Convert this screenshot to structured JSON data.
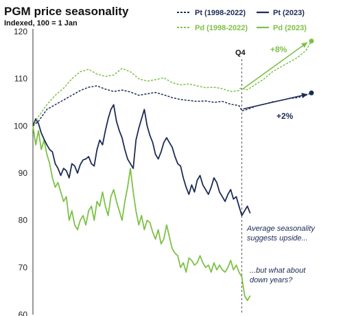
{
  "chart_data": {
    "type": "line",
    "title": "PGM price seasonality",
    "subtitle": "Indexed, 100 = 1 Jan",
    "ylim": [
      60,
      120
    ],
    "yticks": [
      60,
      70,
      80,
      90,
      100,
      110,
      120
    ],
    "xlim": [
      0,
      1
    ],
    "grid": false,
    "legend_position": "top-right",
    "colors": {
      "pt": "#1b2a55",
      "pd": "#7cc144",
      "guide": "#555555",
      "arrow_pt": "#1b2a55",
      "arrow_pd": "#7cc144"
    },
    "series": [
      {
        "name": "Pt (1998-2022)",
        "style": "dashed",
        "color": "#1b2a55",
        "x": [
          0.0,
          0.02,
          0.05,
          0.08,
          0.11,
          0.14,
          0.17,
          0.2,
          0.23,
          0.26,
          0.29,
          0.32,
          0.35,
          0.38,
          0.41,
          0.44,
          0.47,
          0.5,
          0.53,
          0.56,
          0.59,
          0.62,
          0.65,
          0.68,
          0.71,
          0.74,
          0.745,
          0.75,
          0.77,
          0.8,
          0.83,
          0.86,
          0.89,
          0.92,
          0.95,
          0.98,
          1.0
        ],
        "values": [
          100,
          101,
          103.5,
          104.5,
          105.5,
          106.5,
          107.5,
          108.2,
          108.5,
          107.8,
          107.3,
          107.6,
          107.2,
          106.5,
          106.8,
          107.1,
          106.6,
          106.0,
          105.6,
          105.4,
          105.2,
          105.3,
          105.0,
          105.2,
          104.6,
          104.3,
          103.8,
          103.2,
          103.5,
          104.2,
          104.6,
          105.1,
          105.4,
          105.8,
          106.0,
          106.5,
          107.0
        ]
      },
      {
        "name": "Pt (2023)",
        "style": "solid",
        "color": "#1b2a55",
        "x": [
          0.0,
          0.01,
          0.02,
          0.03,
          0.04,
          0.05,
          0.06,
          0.07,
          0.08,
          0.09,
          0.1,
          0.11,
          0.12,
          0.13,
          0.14,
          0.15,
          0.16,
          0.17,
          0.18,
          0.19,
          0.2,
          0.21,
          0.22,
          0.23,
          0.24,
          0.25,
          0.26,
          0.27,
          0.28,
          0.29,
          0.3,
          0.31,
          0.32,
          0.33,
          0.34,
          0.35,
          0.36,
          0.37,
          0.38,
          0.39,
          0.4,
          0.41,
          0.42,
          0.43,
          0.44,
          0.45,
          0.46,
          0.47,
          0.48,
          0.49,
          0.5,
          0.51,
          0.52,
          0.53,
          0.54,
          0.55,
          0.56,
          0.57,
          0.58,
          0.59,
          0.6,
          0.61,
          0.62,
          0.63,
          0.64,
          0.65,
          0.66,
          0.67,
          0.68,
          0.69,
          0.7,
          0.71,
          0.72,
          0.73,
          0.74,
          0.75,
          0.76,
          0.77,
          0.78
        ],
        "values": [
          100,
          101.5,
          100.5,
          98.5,
          97.2,
          96.0,
          95.0,
          94.5,
          92.0,
          91.0,
          89.5,
          91.0,
          90.5,
          89.0,
          92.0,
          91.5,
          90.0,
          91.8,
          92.8,
          93.0,
          93.5,
          92.0,
          91.5,
          95.0,
          97.0,
          96.0,
          99.0,
          101.5,
          103.5,
          104.5,
          101.0,
          99.0,
          97.5,
          95.0,
          93.0,
          92.0,
          91.0,
          97.0,
          99.5,
          101.5,
          103.5,
          100.0,
          98.0,
          96.5,
          94.0,
          93.0,
          94.5,
          96.5,
          97.5,
          96.5,
          95.5,
          93.5,
          92.0,
          91.5,
          89.0,
          87.0,
          85.5,
          87.5,
          86.0,
          88.5,
          89.5,
          87.5,
          86.5,
          85.5,
          87.0,
          89.0,
          88.0,
          86.0,
          85.0,
          84.0,
          85.5,
          86.5,
          84.5,
          85.0,
          83.0,
          81.0,
          82.0,
          83.0,
          81.5
        ]
      },
      {
        "name": "Pd (1998-2022)",
        "style": "dashed",
        "color": "#7cc144",
        "x": [
          0.0,
          0.02,
          0.05,
          0.08,
          0.11,
          0.14,
          0.17,
          0.2,
          0.23,
          0.26,
          0.29,
          0.32,
          0.35,
          0.38,
          0.41,
          0.44,
          0.47,
          0.5,
          0.53,
          0.56,
          0.59,
          0.62,
          0.65,
          0.68,
          0.71,
          0.74,
          0.745,
          0.75,
          0.77,
          0.8,
          0.83,
          0.86,
          0.89,
          0.92,
          0.95,
          0.98,
          1.0
        ],
        "values": [
          100,
          102,
          104.5,
          106.5,
          108,
          110,
          111.5,
          112,
          111,
          110.5,
          110.8,
          112.2,
          111.5,
          110.0,
          109.5,
          109.8,
          110.2,
          109.2,
          108.7,
          108.9,
          108.5,
          108.1,
          108.2,
          107.9,
          107.3,
          107.5,
          108.0,
          107.9,
          107.7,
          108.8,
          110.0,
          111.5,
          112.5,
          113.5,
          114.5,
          116.0,
          118.0
        ]
      },
      {
        "name": "Pd (2023)",
        "style": "solid",
        "color": "#7cc144",
        "x": [
          0.0,
          0.01,
          0.02,
          0.03,
          0.04,
          0.05,
          0.06,
          0.07,
          0.08,
          0.09,
          0.1,
          0.11,
          0.12,
          0.13,
          0.14,
          0.15,
          0.16,
          0.17,
          0.18,
          0.19,
          0.2,
          0.21,
          0.22,
          0.23,
          0.24,
          0.25,
          0.26,
          0.27,
          0.28,
          0.29,
          0.3,
          0.31,
          0.32,
          0.33,
          0.34,
          0.35,
          0.36,
          0.37,
          0.38,
          0.39,
          0.4,
          0.41,
          0.42,
          0.43,
          0.44,
          0.45,
          0.46,
          0.47,
          0.48,
          0.49,
          0.5,
          0.51,
          0.52,
          0.53,
          0.54,
          0.55,
          0.56,
          0.57,
          0.58,
          0.59,
          0.6,
          0.61,
          0.62,
          0.63,
          0.64,
          0.65,
          0.66,
          0.67,
          0.68,
          0.69,
          0.7,
          0.71,
          0.72,
          0.73,
          0.74,
          0.75,
          0.76,
          0.77,
          0.78
        ],
        "values": [
          100,
          96.0,
          99.0,
          95.0,
          97.0,
          94.0,
          92.0,
          89.0,
          87.0,
          88.0,
          86.0,
          84.0,
          85.0,
          80.0,
          82.0,
          79.0,
          78.0,
          80.0,
          81.0,
          79.0,
          82.0,
          83.0,
          80.0,
          84.0,
          83.0,
          86.0,
          83.0,
          81.0,
          85.0,
          86.5,
          84.0,
          82.0,
          80.0,
          84.0,
          87.0,
          91.0,
          86.0,
          82.0,
          79.0,
          81.0,
          78.0,
          80.0,
          79.5,
          77.5,
          76.0,
          78.0,
          75.0,
          76.0,
          79.0,
          76.5,
          74.0,
          73.0,
          72.5,
          70.0,
          71.0,
          69.0,
          72.0,
          71.5,
          70.5,
          71.0,
          72.5,
          71.0,
          70.0,
          70.5,
          69.0,
          71.0,
          69.5,
          70.5,
          69.5,
          69.0,
          70.0,
          71.5,
          69.5,
          70.5,
          69.0,
          68.0,
          64.0,
          63.0,
          64.0
        ]
      }
    ],
    "annotations": {
      "q4_label": "Q4",
      "pt_change": "+2%",
      "pd_change": "+8%",
      "note1_line1": "Average seasonality",
      "note1_line2": "suggests upside...",
      "note2_line1": "...but what about",
      "note2_line2": "down years?"
    }
  }
}
